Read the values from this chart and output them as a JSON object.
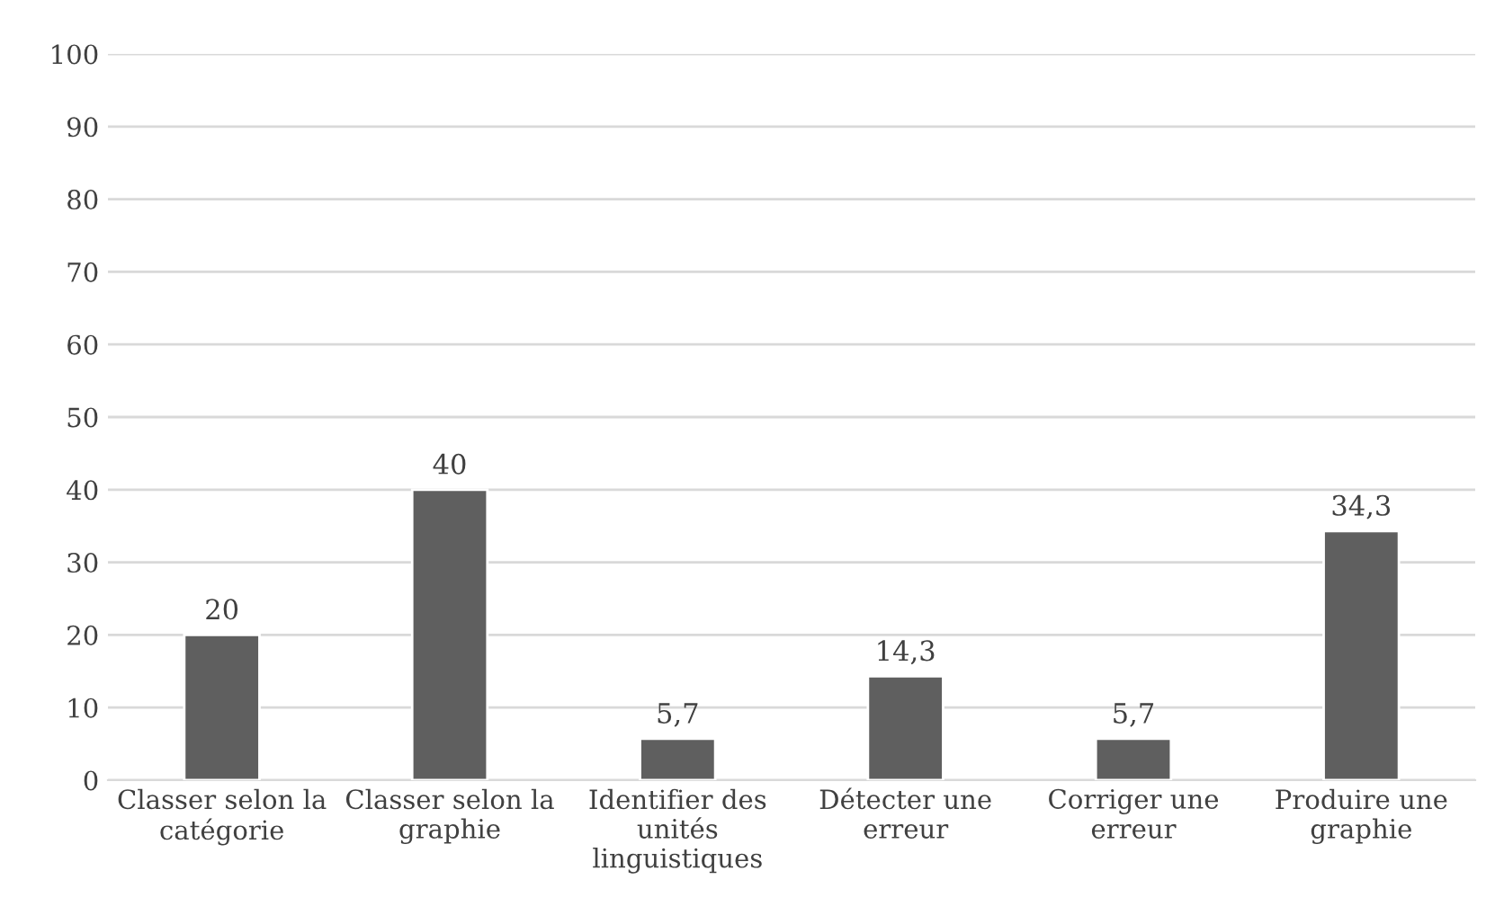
{
  "chart_data": {
    "type": "bar",
    "categories": [
      "Classer selon la\ncatégorie",
      "Classer selon la\ngraphie",
      "Identifier des\nunités\nlinguistiques",
      "Détecter une\nerreur",
      "Corriger une\nerreur",
      "Produire une\ngraphie"
    ],
    "values": [
      20,
      40,
      5.7,
      14.3,
      5.7,
      34.3
    ],
    "value_labels": [
      "20",
      "40",
      "5,7",
      "14,3",
      "5,7",
      "34,3"
    ],
    "color": "#5f5f5f",
    "ylim": [
      0,
      100
    ],
    "yticks": [
      0,
      10,
      20,
      30,
      40,
      50,
      60,
      70,
      80,
      90,
      100
    ],
    "grid": "y"
  }
}
